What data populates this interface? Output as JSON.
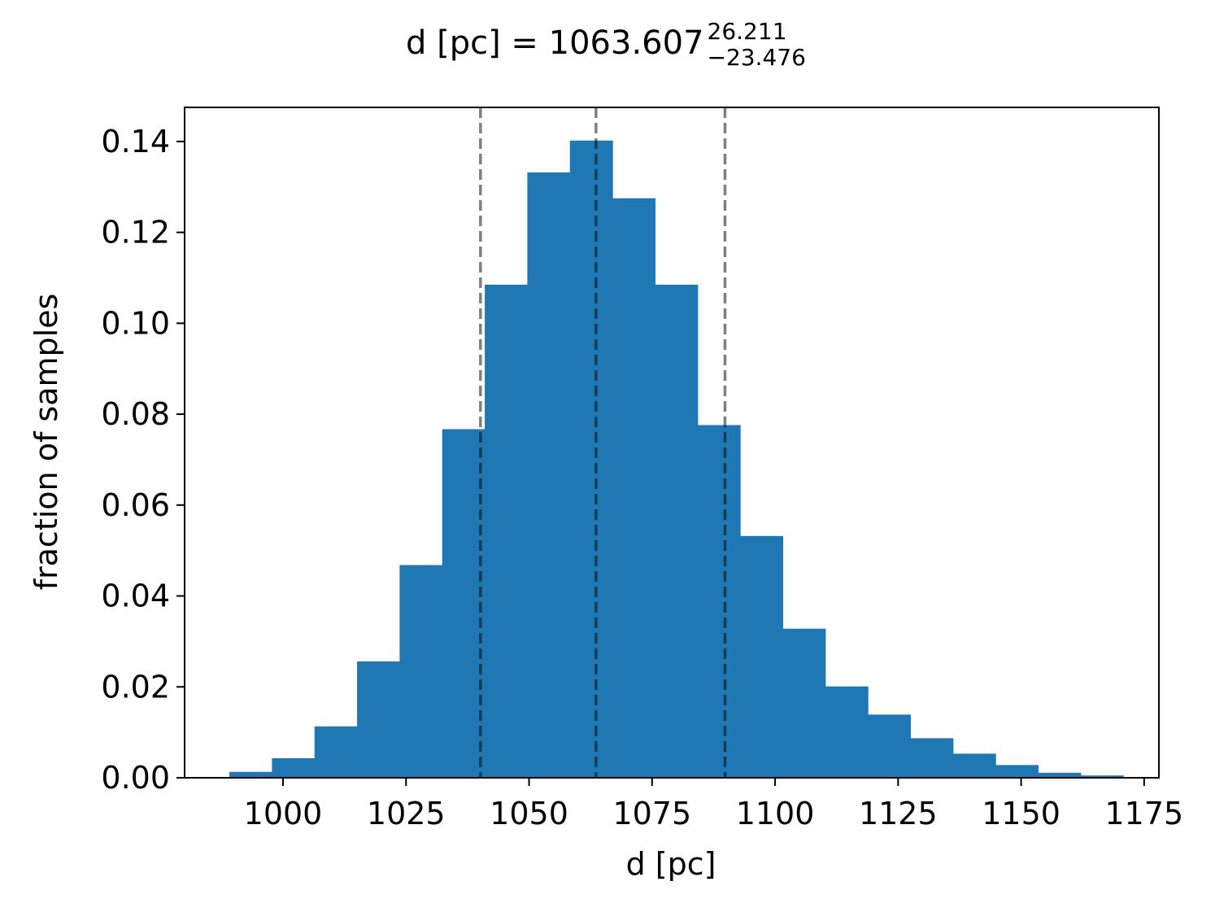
{
  "chart_data": {
    "type": "bar",
    "title": {
      "main": "d [pc] = 1063.607",
      "sup": "26.211",
      "sub": "−23.476"
    },
    "xlabel": "d [pc]",
    "ylabel": "fraction of samples",
    "xlim": [
      980,
      1178
    ],
    "ylim": [
      0,
      0.1475
    ],
    "xticks": [
      1000,
      1025,
      1050,
      1075,
      1100,
      1125,
      1150,
      1175
    ],
    "yticks": [
      0.0,
      0.02,
      0.04,
      0.06,
      0.08,
      0.1,
      0.12,
      0.14
    ],
    "ytick_labels": [
      "0.00",
      "0.02",
      "0.04",
      "0.06",
      "0.08",
      "0.10",
      "0.12",
      "0.14"
    ],
    "bin_edges": [
      989.1,
      997.75,
      1006.4,
      1015.05,
      1023.7,
      1032.35,
      1041.0,
      1049.65,
      1058.3,
      1066.95,
      1075.6,
      1084.25,
      1092.9,
      1101.55,
      1110.2,
      1118.85,
      1127.5,
      1136.15,
      1144.8,
      1153.45,
      1162.1,
      1170.75
    ],
    "values": [
      0.0013,
      0.0043,
      0.0113,
      0.0256,
      0.0468,
      0.0767,
      0.1085,
      0.1332,
      0.1402,
      0.1275,
      0.1085,
      0.0776,
      0.0532,
      0.0328,
      0.0201,
      0.0139,
      0.0087,
      0.0053,
      0.0028,
      0.0011,
      0.0005
    ],
    "bar_color": "#1f77b4",
    "vlines": [
      {
        "x": 1040.131,
        "style": "dashed",
        "color": "#000000",
        "alpha": 0.5
      },
      {
        "x": 1063.607,
        "style": "dashed",
        "color": "#000000",
        "alpha": 0.5
      },
      {
        "x": 1089.818,
        "style": "dashed",
        "color": "#000000",
        "alpha": 0.5
      }
    ],
    "grid": false,
    "legend": "none"
  }
}
